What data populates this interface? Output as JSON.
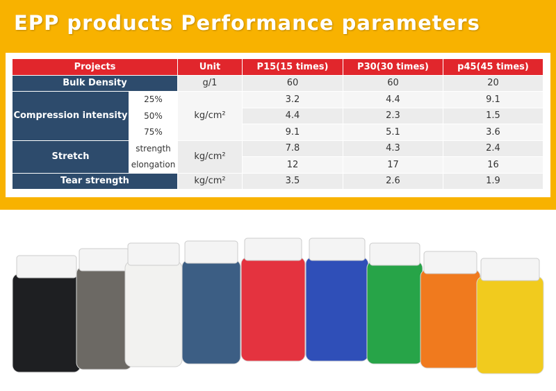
{
  "header": {
    "title": "EPP products Performance parameters"
  },
  "table": {
    "headers": [
      "Projects",
      "Unit",
      "P15(15 times)",
      "P30(30 times)",
      "p45(45 times)"
    ],
    "rows": [
      {
        "label": "Bulk Density",
        "unit": "g/1",
        "values": [
          [
            60,
            60,
            20
          ]
        ]
      },
      {
        "label": "Compression intensity",
        "subs": [
          "25%",
          "50%",
          "75%"
        ],
        "unit": "kg/cm²",
        "values": [
          [
            3.2,
            4.4,
            9.1
          ],
          [
            4.4,
            2.3,
            1.5
          ],
          [
            9.1,
            5.1,
            3.6
          ]
        ]
      },
      {
        "label": "Stretch",
        "subs": [
          "strength",
          "elongation"
        ],
        "unit": "kg/cm²",
        "values": [
          [
            7.8,
            4.3,
            2.4
          ],
          [
            12,
            17,
            16
          ]
        ]
      },
      {
        "label": "Tear strength",
        "unit": "kg/cm²",
        "values": [
          [
            3.5,
            2.6,
            1.9
          ]
        ]
      }
    ]
  }
}
